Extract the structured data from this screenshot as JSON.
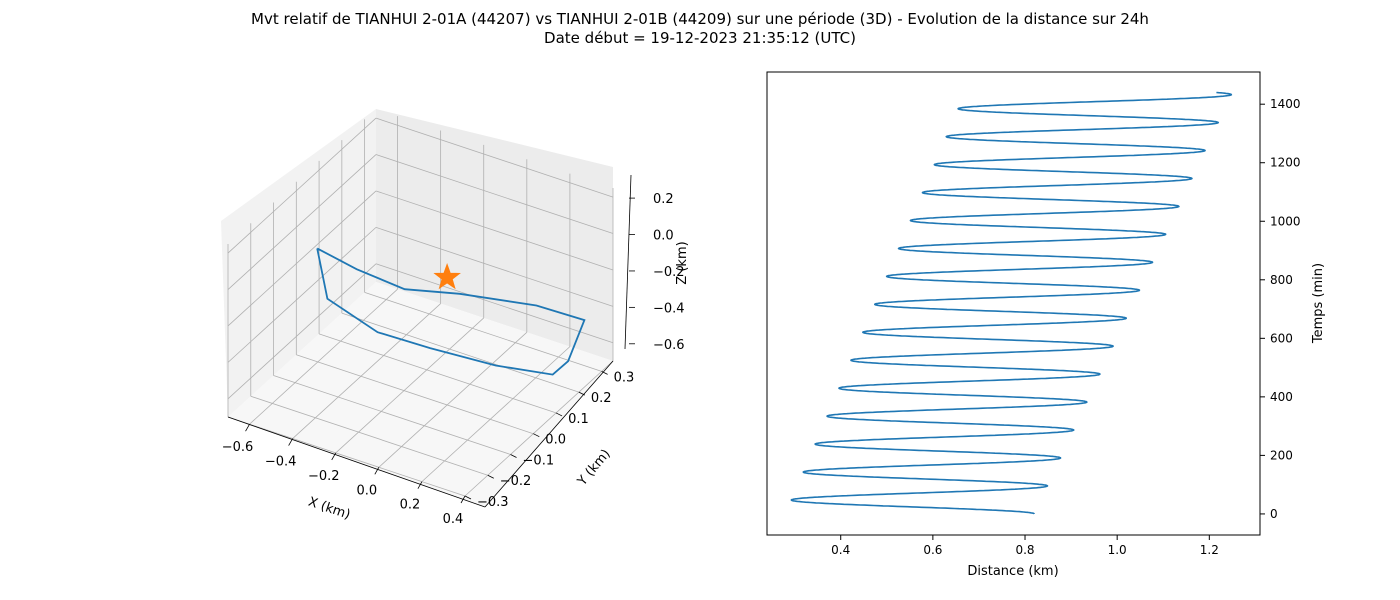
{
  "title": "Mvt relatif de TIANHUI 2-01A (44207) vs TIANHUI 2-01B (44209) sur une période (3D) - Evolution de la distance sur 24h",
  "subtitle": "Date début = 19-12-2023 21:35:12 (UTC)",
  "colors": {
    "series": "#1f77b4",
    "marker": "#ff7f0e"
  },
  "chart_data": [
    {
      "type": "line",
      "projection": "3d",
      "xlabel": "X (km)",
      "ylabel": "Y (km)",
      "zlabel": "Z (km)",
      "xticks": [
        "−0.6",
        "−0.4",
        "−0.2",
        "0.0",
        "0.2",
        "0.4"
      ],
      "yticks": [
        "−0.3",
        "−0.2",
        "−0.1",
        "0.0",
        "0.1",
        "0.2",
        "0.3"
      ],
      "zticks": [
        "−0.6",
        "−0.4",
        "−0.2",
        "0.0",
        "0.2"
      ],
      "xlim": [
        -0.7,
        0.4
      ],
      "ylim": [
        -0.3,
        0.35
      ],
      "zlim": [
        -0.7,
        0.25
      ],
      "grid": true,
      "series": [
        {
          "type": "line",
          "x": [
            -0.55,
            -0.42,
            -0.25,
            -0.1,
            0.15,
            0.32,
            0.35,
            0.3,
            0.12,
            -0.1,
            -0.27,
            -0.45,
            -0.55
          ],
          "y": [
            -0.05,
            0.0,
            0.05,
            0.15,
            0.25,
            0.3,
            0.2,
            0.18,
            0.1,
            0.02,
            -0.05,
            -0.1,
            -0.05
          ],
          "z": [
            0.0,
            -0.12,
            -0.22,
            -0.3,
            -0.38,
            -0.45,
            -0.55,
            -0.62,
            -0.55,
            -0.45,
            -0.35,
            -0.18,
            0.0
          ]
        }
      ],
      "markers": [
        {
          "shape": "star",
          "x": 0.0,
          "y": 0.0,
          "z": 0.0
        }
      ]
    },
    {
      "type": "line",
      "xlabel": "Distance (km)",
      "ylabel": "Temps (min)",
      "xticks": [
        0.4,
        0.6,
        0.8,
        1.0,
        1.2
      ],
      "yticks": [
        0,
        200,
        400,
        600,
        800,
        1000,
        1200,
        1400
      ],
      "xlim": [
        0.24,
        1.31
      ],
      "ylim": [
        -72,
        1510
      ],
      "grid": false,
      "yaxis_side": "right",
      "wave": {
        "t_max": 1440,
        "period_min": 95.5,
        "center_start": 0.55,
        "center_end": 0.96,
        "amp_start": 0.27,
        "amp_end": 0.29,
        "start_phase": "mid-right"
      }
    }
  ]
}
